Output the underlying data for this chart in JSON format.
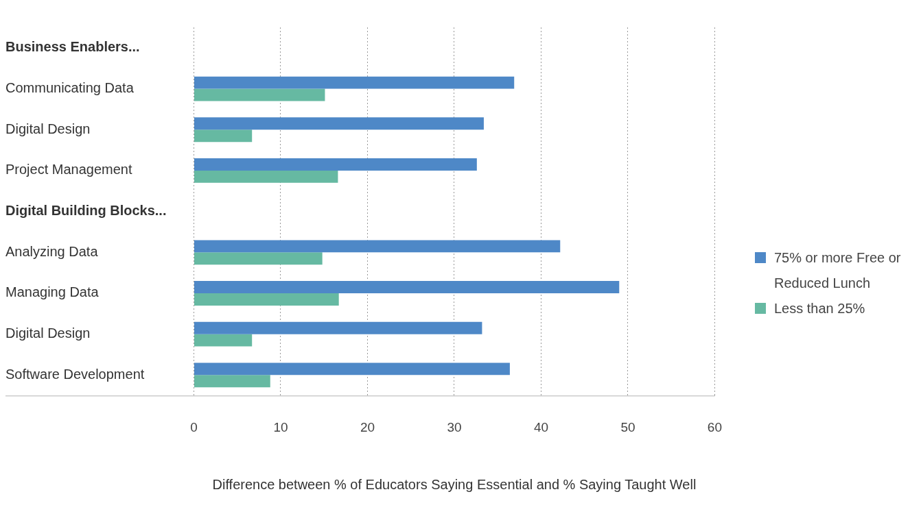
{
  "chart_data": {
    "type": "bar",
    "orientation": "horizontal",
    "xlabel": "Difference between % of Educators Saying Essential and % Saying Taught Well",
    "categories": [
      "Business Enablers...",
      "Communicating Data",
      "Digital Design",
      "Project Management",
      "Digital Building Blocks...",
      "Analyzing Data",
      "Managing Data",
      "Digital Design",
      "Software Development"
    ],
    "series": [
      {
        "name": "75% or more Free or Reduced Lunch",
        "color": "#4e88c7",
        "values": [
          null,
          36.9,
          33.4,
          32.6,
          null,
          42.2,
          49.0,
          33.2,
          36.4
        ]
      },
      {
        "name": "Less than 25%",
        "color": "#66b9a2",
        "values": [
          null,
          15.1,
          6.7,
          16.6,
          null,
          14.8,
          16.7,
          6.7,
          8.8
        ]
      }
    ],
    "xlim": [
      0,
      60
    ],
    "xticks": [
      0,
      10,
      20,
      30,
      40,
      50,
      60
    ],
    "grid": "x",
    "legend": "right"
  }
}
